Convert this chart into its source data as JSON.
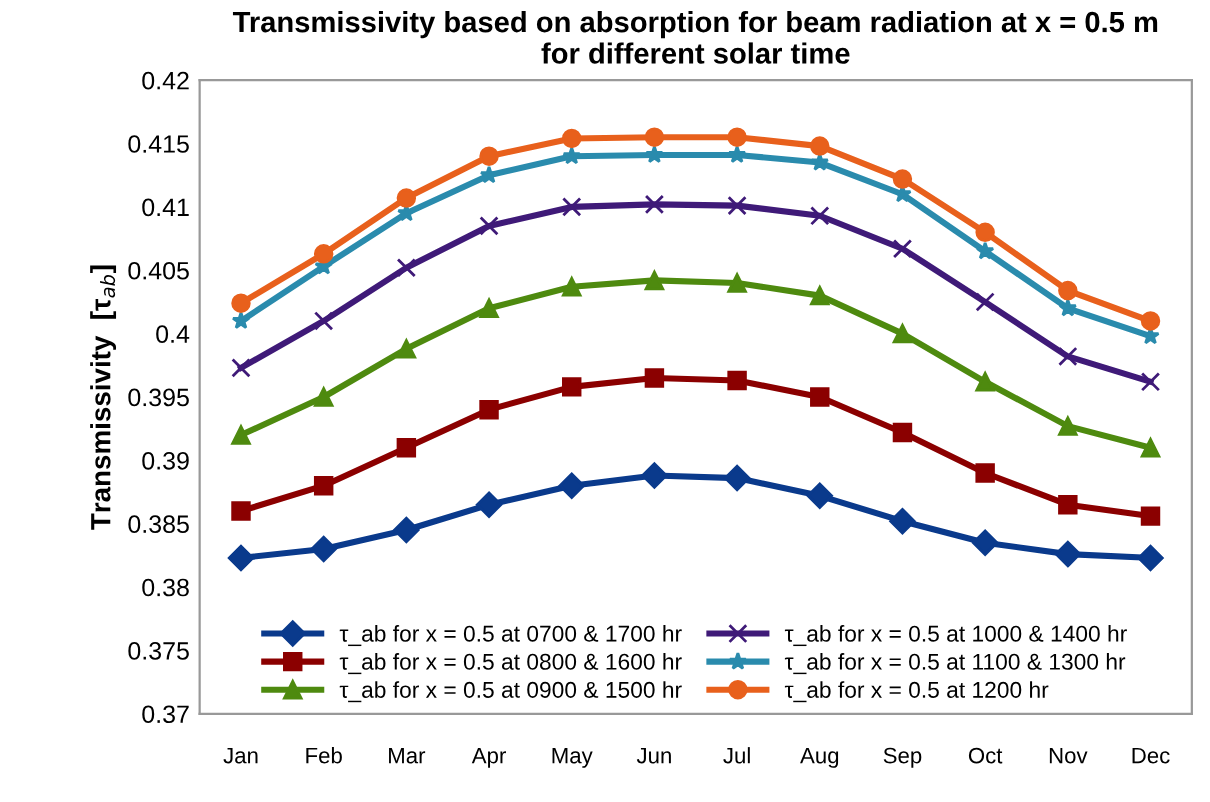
{
  "chart_data": {
    "type": "line",
    "title": "Transmissivity based on absorption for beam radiation at x = 0.5 m\nfor different solar time",
    "ylabel": "Transmissivity  [τ$_{ab}$]",
    "categories": [
      "Jan",
      "Feb",
      "Mar",
      "Apr",
      "May",
      "Jun",
      "Jul",
      "Aug",
      "Sep",
      "Oct",
      "Nov",
      "Dec"
    ],
    "ylim": [
      0.37,
      0.42
    ],
    "yticks": [
      {
        "value": 0.37,
        "label": "0.37"
      },
      {
        "value": 0.375,
        "label": "0.375"
      },
      {
        "value": 0.38,
        "label": "0.38"
      },
      {
        "value": 0.385,
        "label": "0.385"
      },
      {
        "value": 0.39,
        "label": "0.39"
      },
      {
        "value": 0.395,
        "label": "0.395"
      },
      {
        "value": 0.4,
        "label": "0.4"
      },
      {
        "value": 0.405,
        "label": "0.405"
      },
      {
        "value": 0.41,
        "label": "0.41"
      },
      {
        "value": 0.415,
        "label": "0.415"
      },
      {
        "value": 0.42,
        "label": "0.42"
      }
    ],
    "grid": false,
    "legend": "bottom",
    "line_style": "solid",
    "series": [
      {
        "name": "τ_ab for x = 0.5 at 0700 & 1700 hr",
        "color": "#0a3a8c",
        "marker": "diamond",
        "values": [
          0.3823,
          0.383,
          0.3845,
          0.3865,
          0.388,
          0.3888,
          0.3886,
          0.3872,
          0.3852,
          0.3835,
          0.3826,
          0.3823
        ]
      },
      {
        "name": "τ_ab for x = 0.5 at 0800 & 1600 hr",
        "color": "#8b0000",
        "marker": "square",
        "values": [
          0.386,
          0.388,
          0.391,
          0.394,
          0.3958,
          0.3965,
          0.3963,
          0.395,
          0.3922,
          0.389,
          0.3865,
          0.3856
        ]
      },
      {
        "name": "τ_ab for x = 0.5 at 0900 & 1500 hr",
        "color": "#4e8a0f",
        "marker": "triangle",
        "values": [
          0.392,
          0.395,
          0.3988,
          0.402,
          0.4037,
          0.4042,
          0.404,
          0.403,
          0.4,
          0.3962,
          0.3927,
          0.391
        ]
      },
      {
        "name": "τ_ab for x = 0.5 at 1000 & 1400 hr",
        "color": "#3f1a78",
        "marker": "cross",
        "values": [
          0.3973,
          0.401,
          0.4052,
          0.4085,
          0.41,
          0.4102,
          0.4101,
          0.4093,
          0.4067,
          0.4025,
          0.3982,
          0.3962
        ]
      },
      {
        "name": "τ_ab for x = 0.5 at 1100 & 1300 hr",
        "color": "#2a8bad",
        "marker": "star",
        "values": [
          0.401,
          0.4053,
          0.4095,
          0.4125,
          0.414,
          0.4141,
          0.4141,
          0.4135,
          0.411,
          0.4065,
          0.402,
          0.3998
        ]
      },
      {
        "name": "τ_ab for x = 0.5 at 1200 hr",
        "color": "#e8601c",
        "marker": "circle",
        "values": [
          0.4024,
          0.4063,
          0.4107,
          0.414,
          0.4154,
          0.4155,
          0.4155,
          0.4148,
          0.4122,
          0.408,
          0.4034,
          0.401
        ]
      }
    ]
  }
}
